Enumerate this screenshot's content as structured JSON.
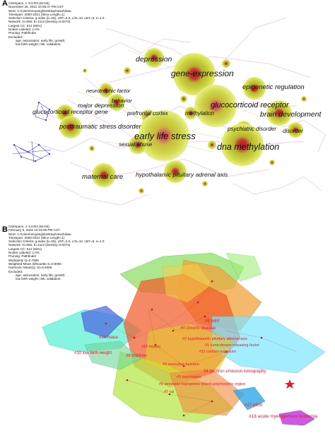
{
  "panel_a": {
    "letter": "A",
    "meta": [
      "CiteSpace, v. 5.8.R3 (64-bit)",
      "November 26, 2021 10:05:47 PM CST",
      "WoS: C:\\Users\\moyang\\Desktop\\new2\\data",
      "Timespan: 2000-2021 (Slice Length=1)",
      "Selection Criteria: g-index (k=25), LRF=3.0, L/N=10, LBY=5, e=1.0",
      "Network: N=556, E=1113 (Density=0.0074)",
      "Largest CC: 512 (92%)",
      "Nodes Labeled: 1.0%",
      "Pruning: Pathfinder",
      "Excluded:",
      "age; association; early life; growth;",
      "low birth weight; risk; validation;"
    ],
    "keywords": [
      "depression",
      "gene-expression",
      "epigenetic regulation",
      "neurotrophic factor",
      "behavior",
      "glucocorticoid receptor",
      "major depression",
      "prefrontal cortex",
      "glucocorticoid receptor gene",
      "methylation",
      "brain development",
      "posttraumatic stress disorder",
      "psychiatric disorder",
      "disorder",
      "early life stress",
      "sexual abuse",
      "dna methylation",
      "maternal care",
      "hypothalamic pituitary adrenal axis"
    ]
  },
  "panel_b": {
    "letter": "B",
    "meta": [
      "CiteSpace, v. 5.8.R3 (64-bit)",
      "February 6, 2022 10:15:06 PM CST",
      "WoS: C:\\Users\\moyang\\Desktop\\new2\\data",
      "Timespan: 2000-2021 (Slice Length=1)",
      "Selection Criteria: g-index (k=25), LRF=3.0, L/N=10, LBY=5, e=1.0",
      "Network: N=556, E=1113 (Density=0.0074)",
      "Largest CC: 512 (92%)",
      "Nodes Labeled: 1.0%",
      "Pruning: Pathfinder",
      "Modularity Q=0.7898",
      "Weighted Mean Silhouette S=0.9092",
      "Harmonic Mean(Q, S)=0.8455",
      "Excluded:",
      "age; association; early life; growth;",
      "low birth weight; risk; validation;"
    ],
    "clusters": [
      "#8 bdnf",
      "#0 chronic disease",
      "#2 hypothalamic pituitary adrenal axis",
      "#14 maoa",
      "#1 corticotropin releasing factor",
      "#15 impact",
      "#11 cortisol exposure",
      "#10 low birth weight",
      "#6 children",
      "#9 executive function",
      "#4 positron emission tomography",
      "#3 depression",
      "#5 serotonin transporter linked polymorphic region",
      "#7 rat",
      "#17 p300",
      "#18 acute myelogenous leukemia"
    ]
  }
}
